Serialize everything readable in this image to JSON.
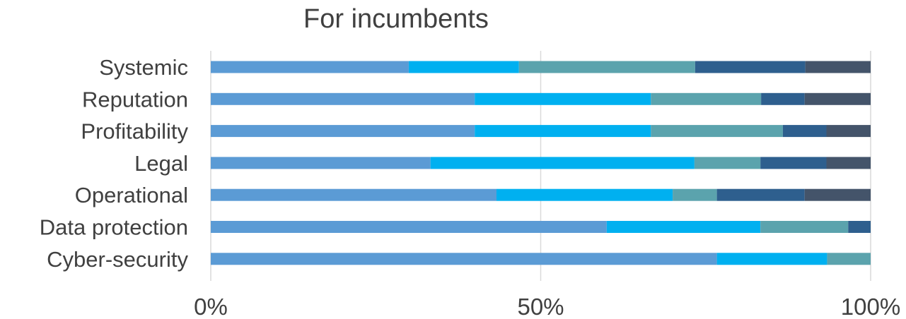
{
  "chart_data": {
    "type": "bar",
    "orientation": "horizontal",
    "stacked": "percent",
    "title": "For incumbents",
    "xlabel": "",
    "ylabel": "",
    "xlim": [
      0,
      100
    ],
    "x_ticks": [
      "0%",
      "50%",
      "100%"
    ],
    "grid": "vertical",
    "legend": "none",
    "categories": [
      "Systemic",
      "Reputation",
      "Profitability",
      "Legal",
      "Operational",
      "Data protection",
      "Cyber-security"
    ],
    "series": [
      {
        "color": "#5b9bd5",
        "values": [
          30,
          40,
          40,
          33.3,
          43.3,
          60,
          76.7
        ]
      },
      {
        "color": "#00b0f0",
        "values": [
          16.7,
          26.7,
          26.7,
          40,
          26.7,
          23.3,
          16.7
        ]
      },
      {
        "color": "#5ba3ad",
        "values": [
          26.7,
          16.7,
          20,
          10,
          6.7,
          13.3,
          6.6
        ]
      },
      {
        "color": "#2e5f8e",
        "values": [
          16.7,
          6.6,
          6.6,
          10,
          13.3,
          3.4,
          0
        ]
      },
      {
        "color": "#44546a",
        "values": [
          9.9,
          10,
          6.7,
          6.7,
          10,
          0,
          0
        ]
      }
    ]
  }
}
